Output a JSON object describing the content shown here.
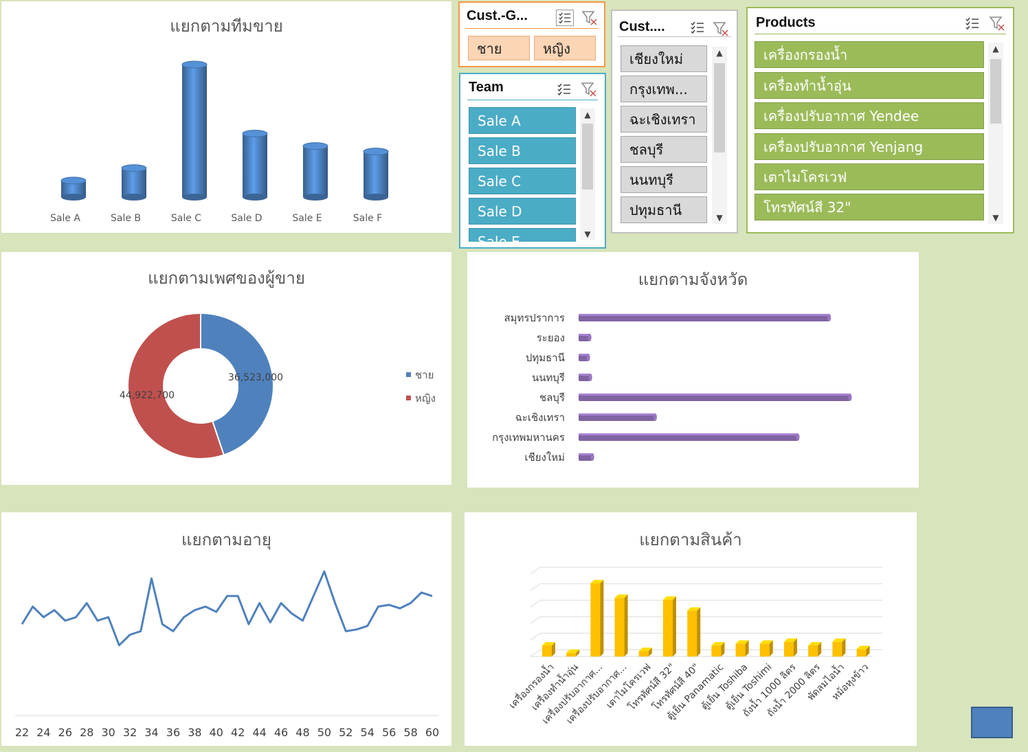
{
  "charts": {
    "team": {
      "title": "แยกตามทีมขาย",
      "chart_data": {
        "type": "bar",
        "categories": [
          "Sale A",
          "Sale B",
          "Sale C",
          "Sale D",
          "Sale E",
          "Sale F"
        ],
        "values": [
          12,
          21,
          96,
          46,
          37,
          33
        ],
        "style": "3d-cylinder",
        "color": "#4a7ebb"
      }
    },
    "gender": {
      "title": "แยกตามเพศของผู้ขาย",
      "chart_data": {
        "type": "pie",
        "style": "donut",
        "labels": [
          "ชาย",
          "หญิง"
        ],
        "values": [
          36523000,
          44922700
        ],
        "value_labels": [
          "36,523,000",
          "44,922,700"
        ],
        "colors": [
          "#4f81bd",
          "#c0504d"
        ],
        "legend": "right"
      }
    },
    "province": {
      "title": "แยกตามจังหวัด",
      "chart_data": {
        "type": "bar",
        "orientation": "horizontal",
        "categories": [
          "สมุทรปราการ",
          "ระยอง",
          "ปทุมธานี",
          "นนทบุรี",
          "ชลบุรี",
          "ฉะเชิงเทรา",
          "กรุงเทพมหานคร",
          "เชียงใหม่"
        ],
        "values": [
          360,
          16,
          14,
          17,
          390,
          110,
          315,
          20
        ],
        "color": "#8064a2"
      }
    },
    "age": {
      "title": "แยกตามอายุ",
      "chart_data": {
        "type": "line",
        "x": [
          22,
          23,
          24,
          25,
          26,
          27,
          28,
          29,
          30,
          31,
          32,
          33,
          34,
          35,
          36,
          37,
          38,
          39,
          40,
          41,
          42,
          43,
          44,
          45,
          46,
          47,
          48,
          49,
          50,
          51,
          52,
          53,
          54,
          55,
          56,
          57,
          58,
          59,
          60
        ],
        "values": [
          52,
          62,
          56,
          60,
          54,
          56,
          64,
          54,
          56,
          40,
          46,
          48,
          78,
          52,
          48,
          56,
          60,
          62,
          59,
          68,
          68,
          52,
          64,
          53,
          64,
          58,
          54,
          68,
          82,
          64,
          48,
          49,
          51,
          62,
          63,
          61,
          64,
          70,
          68
        ],
        "x_ticks": [
          "22",
          "24",
          "26",
          "28",
          "30",
          "32",
          "34",
          "36",
          "38",
          "40",
          "42",
          "44",
          "46",
          "48",
          "50",
          "52",
          "54",
          "56",
          "58",
          "60"
        ],
        "ylim": [
          0,
          100
        ],
        "color": "#4f81bd"
      }
    },
    "product": {
      "title": "แยกตามสินค้า",
      "chart_data": {
        "type": "bar",
        "style": "3d",
        "categories": [
          "เครื่องกรองน้ำ",
          "เครื่องทำน้ำอุ่น",
          "เครื่องปรับอากาศ...",
          "เครื่องปรับอากาศ...",
          "เตาไมโครเวฟ",
          "โทรทัศน์สี 32\"",
          "โทรทัศน์สี 40\"",
          "ตู้เย็น Panamatic",
          "ตู้เย็น Toshiba",
          "ตู้เย็น Toshimi",
          "ถังน้ำ 1000 ลิตร",
          "ถังน้ำ 2000 ลิตร",
          "พัดลมไอน้ำ",
          "หม้อหุงข้าว"
        ],
        "values": [
          6,
          2,
          40,
          32,
          3,
          31,
          25,
          6,
          7,
          7,
          8,
          6,
          8,
          4
        ],
        "ylim": [
          0,
          45
        ],
        "color": "#ffc000"
      }
    }
  },
  "slicers": {
    "gender": {
      "title": "Cust.-G...",
      "items": [
        "ชาย",
        "หญิง"
      ]
    },
    "team": {
      "title": "Team",
      "items": [
        "Sale A",
        "Sale B",
        "Sale C",
        "Sale D",
        "Sale E"
      ]
    },
    "province": {
      "title": "Cust....",
      "items": [
        "เชียงใหม่",
        "กรุงเทพ...",
        "ฉะเชิงเทรา",
        "ชลบุรี",
        "นนทบุรี",
        "ปทุมธานี"
      ]
    },
    "products": {
      "title": "Products",
      "items": [
        "เครื่องกรองน้ำ",
        "เครื่องทำน้ำอุ่น",
        "เครื่องปรับอากาศ Yendee",
        "เครื่องปรับอากาศ Yenjang",
        "เตาไมโครเวฟ",
        "โทรทัศน์สี 32\""
      ]
    }
  },
  "icons": {
    "multiselect": "multi-select-icon",
    "clear": "clear-filter-icon",
    "up": "▲",
    "down": "▼"
  }
}
